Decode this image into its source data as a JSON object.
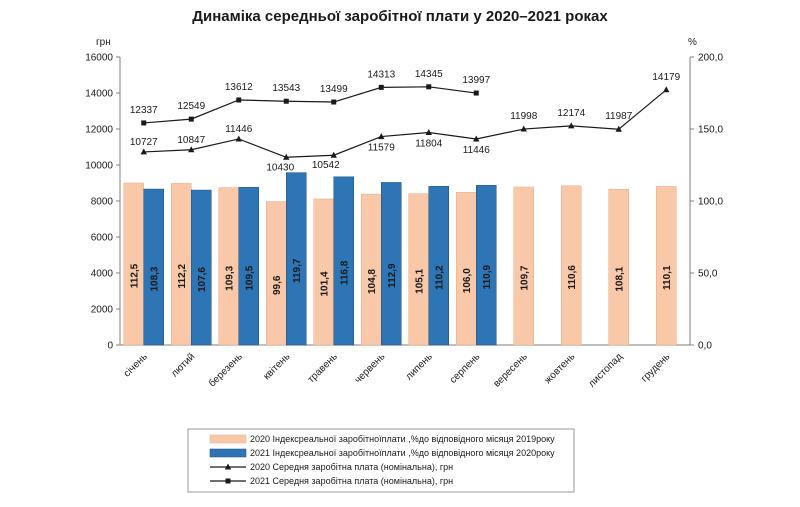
{
  "chart_data": {
    "type": "bar+line",
    "title": "Динаміка середньої заробітної плати у 2020–2021 роках",
    "left_axis_unit": "грн",
    "right_axis_unit": "%",
    "left_ylim": [
      0,
      16000
    ],
    "left_ticks": [
      "0",
      "2000",
      "4000",
      "6000",
      "8000",
      "10000",
      "12000",
      "14000",
      "16000"
    ],
    "right_ylim": [
      0,
      200
    ],
    "right_ticks": [
      "0,0",
      "50,0",
      "100,0",
      "150,0",
      "200,0"
    ],
    "categories": [
      "січень",
      "лютий",
      "березень",
      "квітень",
      "травень",
      "червень",
      "липень",
      "серпень",
      "вересень",
      "жовтень",
      "листопад",
      "грудень"
    ],
    "bar_series": [
      {
        "name": "2020 Індекс реальної заробітної плати, % до відповідного місяця 2019 року",
        "legend": "2020 Індексреальної заробітноїплати ,%до відповідного місяця 2019року",
        "color": "#f9c8a8",
        "values": [
          112.5,
          112.2,
          109.3,
          99.6,
          101.4,
          104.8,
          105.1,
          106.0,
          109.7,
          110.6,
          108.1,
          110.1
        ],
        "labels": [
          "112,5",
          "112,2",
          "109,3",
          "99,6",
          "101,4",
          "104,8",
          "105,1",
          "106,0",
          "109,7",
          "110,6",
          "108,1",
          "110,1"
        ]
      },
      {
        "name": "2021 Індекс реальної заробітної плати, % до відповідного місяця 2020 року",
        "legend": "2021 Індексреальної заробітноїплати ,%до відповідного місяця 2020року",
        "color": "#2e75b6",
        "values": [
          108.3,
          107.6,
          109.5,
          119.7,
          116.8,
          112.9,
          110.2,
          110.9,
          null,
          null,
          null,
          null
        ],
        "labels": [
          "108,3",
          "107,6",
          "109,5",
          "119,7",
          "116,8",
          "112,9",
          "110,2",
          "110,9",
          "",
          "",
          "",
          ""
        ]
      }
    ],
    "line_series": [
      {
        "name": "2020 Середня заробітна плата (номінальна), грн",
        "legend": "2020 Середня заробітна плата (номінальна), грн",
        "marker": "triangle",
        "values": [
          10727,
          10847,
          11446,
          10430,
          10542,
          11579,
          11804,
          11446,
          11998,
          12174,
          11987,
          14179
        ],
        "labels": [
          "10727",
          "10847",
          "11446",
          "10430",
          "10542",
          "11579",
          "11804",
          "11446",
          "11998",
          "12174",
          "11987",
          "14179"
        ]
      },
      {
        "name": "2021 Середня заробітна плата (номінальна), грн",
        "legend": "2021 Середня заробітна плата (номінальна), грн",
        "marker": "square",
        "values": [
          12337,
          12549,
          13612,
          13543,
          13499,
          14313,
          14345,
          13997,
          null,
          null,
          null,
          null
        ],
        "labels": [
          "12337",
          "12549",
          "13612",
          "13543",
          "13499",
          "14313",
          "14345",
          "13997",
          "",
          "",
          "",
          ""
        ]
      }
    ]
  }
}
